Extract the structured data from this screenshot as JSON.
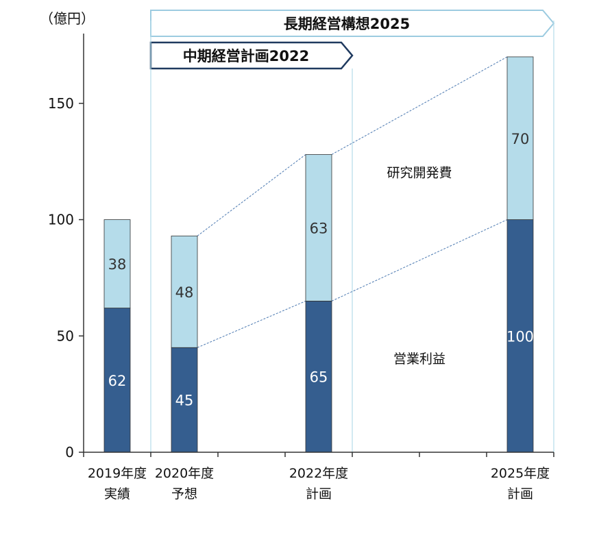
{
  "chart_data": {
    "type": "bar",
    "stacked": true,
    "unit_label": "（億円）",
    "categories": [
      {
        "line1": "2019年度",
        "line2": "実績"
      },
      {
        "line1": "2020年度",
        "line2": "予想"
      },
      {
        "line1": "2022年度",
        "line2": "計画"
      },
      {
        "line1": "2025年度",
        "line2": "計画"
      }
    ],
    "series": [
      {
        "name": "営業利益",
        "values": [
          62,
          45,
          65,
          100
        ],
        "color": "#355E8F",
        "label_color": "#ffffff"
      },
      {
        "name": "研究開発費",
        "values": [
          38,
          48,
          63,
          70
        ],
        "color": "#B5DCEA",
        "label_color": "#333333"
      }
    ],
    "ylim": [
      0,
      180
    ],
    "yticks": [
      0,
      50,
      100,
      150
    ],
    "grid": false,
    "connector_lines": true,
    "banners": [
      {
        "label": "長期経営構想2025",
        "style": "outline-light",
        "from_category": 1,
        "to_category": 3
      },
      {
        "label": "中期経営計画2022",
        "style": "outline-dark",
        "from_category": 1,
        "to_category": 2
      }
    ],
    "colors": {
      "axis": "#333333",
      "connector": "#4A78B0",
      "banner_light": "#9CCBE0",
      "banner_dark": "#1F3A5F",
      "guide": "#B5DCEA"
    }
  }
}
